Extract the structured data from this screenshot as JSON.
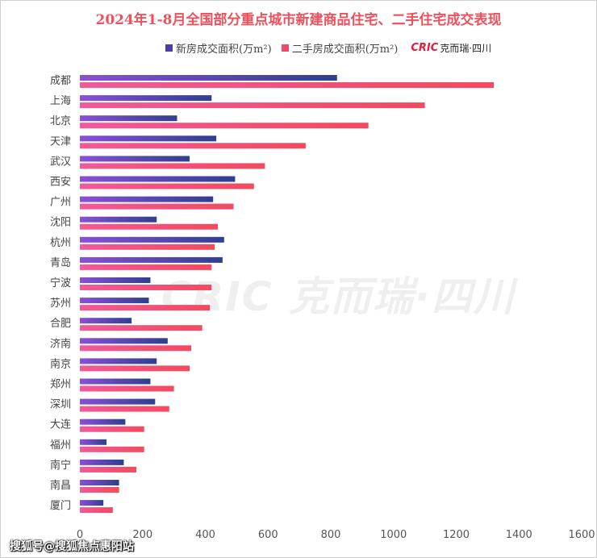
{
  "title": "2024年1-8月全国部分重点城市新建商品住宅、二手住宅成交表现",
  "legend": {
    "series1": "新房成交面积(万m²)",
    "series2": "二手房成交面积(万m²)",
    "logo_mark": "CRIC",
    "logo_text": "克而瑞·四川"
  },
  "watermark": "CRIC 克而瑞·四川",
  "footer": "搜狐号@搜狐焦点惠阳站",
  "colors": {
    "series1_start": "#8a4fd6",
    "series1_end": "#2f3f8f",
    "series2_start": "#f05a9a",
    "series2_end": "#f24a5e",
    "axis_text": "#555555",
    "title": "#f0505c"
  },
  "chart_data": {
    "type": "bar",
    "orientation": "horizontal",
    "title": "2024年1-8月全国部分重点城市新建商品住宅、二手住宅成交表现",
    "categories": [
      "成都",
      "上海",
      "北京",
      "天津",
      "武汉",
      "西安",
      "广州",
      "沈阳",
      "杭州",
      "青岛",
      "宁波",
      "苏州",
      "合肥",
      "济南",
      "南京",
      "郑州",
      "深圳",
      "大连",
      "福州",
      "南宁",
      "南昌",
      "厦门"
    ],
    "series": [
      {
        "name": "新房成交面积(万m²)",
        "values": [
          820,
          420,
          310,
          435,
          350,
          495,
          425,
          245,
          460,
          455,
          225,
          220,
          165,
          280,
          245,
          225,
          240,
          145,
          85,
          140,
          125,
          75
        ]
      },
      {
        "name": "二手房成交面积(万m²)",
        "values": [
          1320,
          1100,
          920,
          720,
          590,
          555,
          490,
          440,
          430,
          420,
          420,
          415,
          390,
          355,
          350,
          300,
          285,
          205,
          205,
          180,
          125,
          105
        ]
      }
    ],
    "xlim": [
      0,
      1600
    ],
    "xticks": [
      "0",
      "200",
      "400",
      "600",
      "800",
      "1000",
      "1200",
      "1400",
      "1600"
    ],
    "legend_position": "top"
  }
}
